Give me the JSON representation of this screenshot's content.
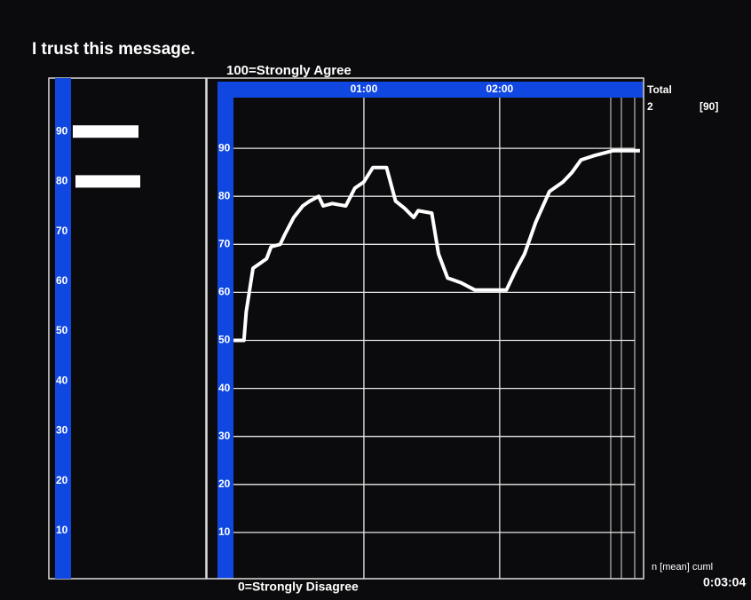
{
  "chart_data": [
    {
      "type": "marker",
      "values": [
        90,
        80
      ],
      "color": "#ffffff",
      "ylim": [
        0,
        100
      ],
      "yticks": [
        10,
        20,
        30,
        40,
        50,
        60,
        70,
        80,
        90
      ]
    },
    {
      "type": "line",
      "title": "I trust this message.",
      "top_label": "100=Strongly Agree",
      "bottom_label": "0=Strongly Disagree",
      "summary": {
        "header": "Total",
        "n": "2",
        "mean": "[90]",
        "legend": "n [mean] cuml",
        "elapsed": "0:03:04"
      },
      "x": [
        2.4,
        7,
        8,
        11,
        14,
        17,
        19,
        23,
        25,
        29,
        33,
        36,
        40,
        42,
        46,
        52,
        56,
        60,
        64,
        70,
        74,
        78,
        82,
        84,
        90,
        93,
        97,
        103,
        109,
        123,
        127,
        131,
        136,
        142,
        148,
        152,
        156,
        162,
        170,
        182
      ],
      "series": [
        {
          "name": "cuml",
          "color": "#ffffff",
          "values": [
            50,
            50,
            56,
            65,
            66,
            67,
            69.5,
            70,
            72,
            75.6,
            78,
            79,
            80,
            78,
            78.5,
            78,
            81.7,
            83,
            86,
            86,
            79,
            77.5,
            75.6,
            77,
            76.5,
            68,
            63,
            62,
            60.5,
            60.5,
            64.5,
            68,
            74.7,
            81,
            83,
            85,
            87.6,
            88.5,
            89.5,
            89.5
          ]
        }
      ],
      "xlim": [
        0,
        184
      ],
      "xticks": [
        {
          "value": 60,
          "label": "01:00"
        },
        {
          "value": 120,
          "label": "02:00"
        }
      ],
      "ylim": [
        0,
        100
      ],
      "yticks": [
        10,
        20,
        30,
        40,
        50,
        60,
        70,
        80,
        90
      ],
      "grid": true
    }
  ]
}
